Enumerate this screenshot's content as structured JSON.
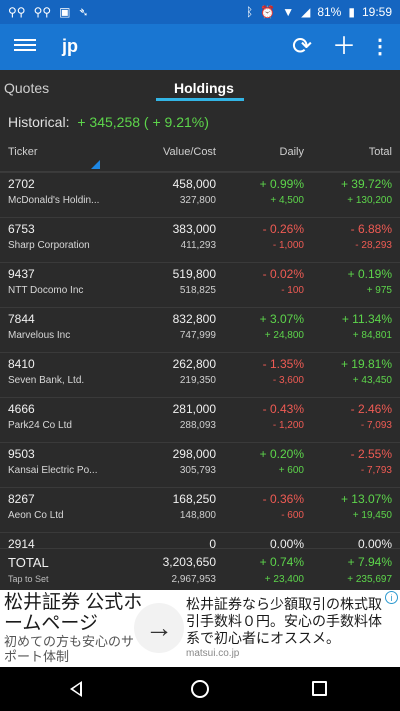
{
  "status_bar": {
    "battery": "81%",
    "time": "19:59",
    "left_icons": [
      "voicemail-icon",
      "voicemail-icon",
      "bus-icon",
      "download-arrow-icon"
    ],
    "right_icons": [
      "bluetooth-icon",
      "alarm-icon",
      "wifi-icon",
      "signal-icon",
      "battery-icon"
    ]
  },
  "app_bar": {
    "title": "jp",
    "icons": [
      "menu-icon",
      "refresh-icon",
      "add-icon",
      "more-vert-icon"
    ]
  },
  "tabs": [
    {
      "label": "Quotes",
      "active": false
    },
    {
      "label": "Holdings",
      "active": true
    }
  ],
  "historical": {
    "label": "Historical:",
    "value": "+ 345,258 ( + 9.21%)"
  },
  "columns": {
    "ticker": "Ticker",
    "value_cost": "Value/Cost",
    "daily": "Daily",
    "total": "Total"
  },
  "holdings": [
    {
      "ticker": "2702",
      "name": "McDonald's Holdin...",
      "value": "458,000",
      "cost": "327,800",
      "daily_pct": "+ 0.99%",
      "daily_val": "+ 4,500",
      "total_pct": "+ 39.72%",
      "total_val": "+ 130,200",
      "daily_dir": "pos",
      "total_dir": "pos"
    },
    {
      "ticker": "6753",
      "name": "Sharp Corporation",
      "value": "383,000",
      "cost": "411,293",
      "daily_pct": "- 0.26%",
      "daily_val": "- 1,000",
      "total_pct": "- 6.88%",
      "total_val": "- 28,293",
      "daily_dir": "neg",
      "total_dir": "neg"
    },
    {
      "ticker": "9437",
      "name": "NTT Docomo Inc",
      "value": "519,800",
      "cost": "518,825",
      "daily_pct": "- 0.02%",
      "daily_val": "- 100",
      "total_pct": "+ 0.19%",
      "total_val": "+ 975",
      "daily_dir": "neg",
      "total_dir": "pos"
    },
    {
      "ticker": "7844",
      "name": "Marvelous Inc",
      "value": "832,800",
      "cost": "747,999",
      "daily_pct": "+ 3.07%",
      "daily_val": "+ 24,800",
      "total_pct": "+ 11.34%",
      "total_val": "+ 84,801",
      "daily_dir": "pos",
      "total_dir": "pos"
    },
    {
      "ticker": "8410",
      "name": "Seven Bank, Ltd.",
      "value": "262,800",
      "cost": "219,350",
      "daily_pct": "- 1.35%",
      "daily_val": "- 3,600",
      "total_pct": "+ 19.81%",
      "total_val": "+ 43,450",
      "daily_dir": "neg",
      "total_dir": "pos"
    },
    {
      "ticker": "4666",
      "name": "Park24 Co Ltd",
      "value": "281,000",
      "cost": "288,093",
      "daily_pct": "- 0.43%",
      "daily_val": "- 1,200",
      "total_pct": "- 2.46%",
      "total_val": "- 7,093",
      "daily_dir": "neg",
      "total_dir": "neg"
    },
    {
      "ticker": "9503",
      "name": "Kansai Electric Po...",
      "value": "298,000",
      "cost": "305,793",
      "daily_pct": "+ 0.20%",
      "daily_val": "+ 600",
      "total_pct": "- 2.55%",
      "total_val": "- 7,793",
      "daily_dir": "pos",
      "total_dir": "neg"
    },
    {
      "ticker": "8267",
      "name": "Aeon Co Ltd",
      "value": "168,250",
      "cost": "148,800",
      "daily_pct": "- 0.36%",
      "daily_val": "- 600",
      "total_pct": "+ 13.07%",
      "total_val": "+ 19,450",
      "daily_dir": "neg",
      "total_dir": "pos"
    },
    {
      "ticker": "2914",
      "name": "",
      "value": "0",
      "cost": "",
      "daily_pct": "0.00%",
      "daily_val": "",
      "total_pct": "0.00%",
      "total_val": "",
      "daily_dir": "neu",
      "total_dir": "neu"
    }
  ],
  "totals": {
    "label": "TOTAL",
    "sub_label": "Tap to Set",
    "value": "3,203,650",
    "cost": "2,967,953",
    "daily_pct": "+ 0.74%",
    "daily_val": "+ 23,400",
    "total_pct": "+ 7.94%",
    "total_val": "+ 235,697"
  },
  "ad": {
    "headline": "松井証券 公式ホームページ",
    "subline": "初めての方も安心のサポート体制",
    "body": "松井証券なら少額取引の株式取引手数料０円。安心の手数料体系で初心者にオススメ。",
    "url": "matsui.co.jp",
    "arrow_icon": "arrow-right-icon",
    "info_icon": "ad-info-icon"
  },
  "nav": {
    "icons": [
      "back-icon",
      "home-icon",
      "recents-icon"
    ]
  },
  "colors": {
    "positive": "#5dd54b",
    "negative": "#ef5b54",
    "app_bar": "#1976d2",
    "tab_indicator": "#33b5e5"
  }
}
